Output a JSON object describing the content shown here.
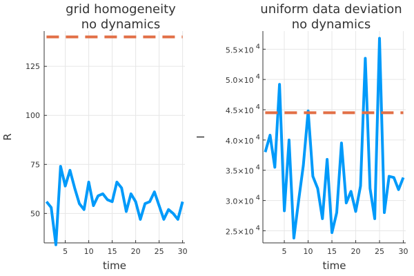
{
  "chart_data": [
    {
      "type": "line",
      "title": "grid homogeneity",
      "subtitle": "no dynamics",
      "xlabel": "time",
      "ylabel": "R",
      "xlim": [
        0.5,
        30.5
      ],
      "ylim": [
        35,
        143
      ],
      "x_ticks": [
        5,
        10,
        15,
        20,
        25,
        30
      ],
      "x_tick_labels": [
        "5",
        "10",
        "15",
        "20",
        "25",
        "30"
      ],
      "y_ticks": [
        50,
        75,
        100,
        125
      ],
      "y_tick_labels": [
        "50",
        "75",
        "100",
        "125"
      ],
      "grid": true,
      "legend": "none",
      "series": [
        {
          "style": "solid",
          "color": "#009AFA",
          "x": [
            1,
            2,
            3,
            4,
            5,
            6,
            7,
            8,
            9,
            10,
            11,
            12,
            13,
            14,
            15,
            16,
            17,
            18,
            19,
            20,
            21,
            22,
            23,
            24,
            25,
            26,
            27,
            28,
            29,
            30
          ],
          "values": [
            56,
            53,
            34,
            74,
            64,
            72,
            63,
            55,
            52,
            66,
            54,
            59,
            60,
            57,
            56,
            66,
            63,
            51,
            60,
            56,
            47,
            55,
            56,
            61,
            54,
            47,
            52,
            50,
            47,
            56
          ]
        },
        {
          "style": "dashed",
          "color": "#E26F46",
          "x": [
            1,
            30
          ],
          "values": [
            140,
            140
          ]
        }
      ]
    },
    {
      "type": "line",
      "title": "uniform data deviation",
      "subtitle": "no dynamics",
      "xlabel": "time",
      "ylabel": "I",
      "xlim": [
        0.5,
        30.5
      ],
      "ylim": [
        23000,
        58000
      ],
      "x_ticks": [
        5,
        10,
        15,
        20,
        25,
        30
      ],
      "x_tick_labels": [
        "5",
        "10",
        "15",
        "20",
        "25",
        "30"
      ],
      "y_ticks": [
        25000,
        30000,
        35000,
        40000,
        45000,
        50000,
        55000
      ],
      "y_tick_labels": [
        {
          "mantissa": "2.5",
          "exponent": "4"
        },
        {
          "mantissa": "3.0",
          "exponent": "4"
        },
        {
          "mantissa": "3.5",
          "exponent": "4"
        },
        {
          "mantissa": "4.0",
          "exponent": "4"
        },
        {
          "mantissa": "4.5",
          "exponent": "4"
        },
        {
          "mantissa": "5.0",
          "exponent": "4"
        },
        {
          "mantissa": "5.5",
          "exponent": "4"
        }
      ],
      "grid": true,
      "legend": "none",
      "series": [
        {
          "style": "solid",
          "color": "#009AFA",
          "x": [
            1,
            2,
            3,
            4,
            5,
            6,
            7,
            8,
            9,
            10,
            11,
            12,
            13,
            14,
            15,
            16,
            17,
            18,
            19,
            20,
            21,
            22,
            23,
            24,
            25,
            26,
            27,
            28,
            29,
            30
          ],
          "values": [
            38000,
            40800,
            35500,
            49200,
            28300,
            40000,
            23800,
            30000,
            35800,
            44800,
            34000,
            32000,
            27000,
            36800,
            24700,
            28000,
            39500,
            29600,
            31500,
            28200,
            32400,
            53500,
            32000,
            27000,
            56800,
            28000,
            34000,
            33800,
            31800,
            33800
          ]
        },
        {
          "style": "dashed",
          "color": "#E26F46",
          "x": [
            1,
            30
          ],
          "values": [
            44500,
            44500
          ]
        }
      ]
    }
  ]
}
